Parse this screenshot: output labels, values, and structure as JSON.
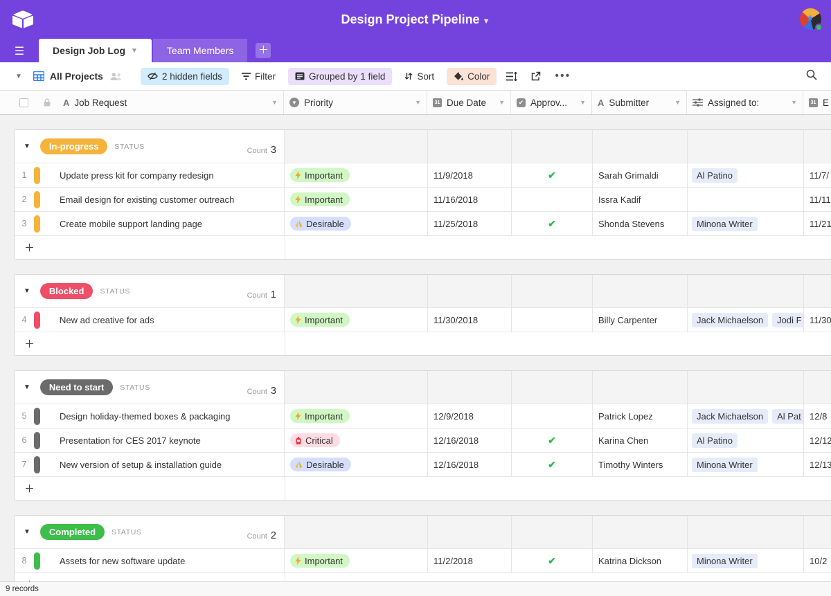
{
  "topbar": {
    "title": "Design Project Pipeline"
  },
  "tabs": {
    "active": "Design Job Log",
    "second": "Team Members"
  },
  "toolbar": {
    "view": "All Projects",
    "hidden_fields": "2 hidden fields",
    "filter": "Filter",
    "grouped": "Grouped by 1 field",
    "sort": "Sort",
    "color": "Color"
  },
  "table": {
    "columns": [
      {
        "id": "job",
        "label": "Job Request",
        "icon": "text-field-icon"
      },
      {
        "id": "priority",
        "label": "Priority",
        "icon": "single-select-icon"
      },
      {
        "id": "due",
        "label": "Due Date",
        "icon": "calendar-icon"
      },
      {
        "id": "approved",
        "label": "Approv...",
        "icon": "checkbox-field-icon"
      },
      {
        "id": "submitter",
        "label": "Submitter",
        "icon": "text-field-icon"
      },
      {
        "id": "assigned",
        "label": "Assigned to:",
        "icon": "sliders-icon"
      },
      {
        "id": "end",
        "label": "E",
        "icon": "calendar-icon"
      }
    ],
    "priority_styles": {
      "Important": {
        "bg": "#d1f7c4",
        "icon": "bolt-icon",
        "icon_color": "#f6a623"
      },
      "Critical": {
        "bg": "#ffdce5",
        "icon": "extinguisher-icon",
        "icon_color": "#e03e3e"
      },
      "Desirable": {
        "bg": "#d5defc",
        "icon": "pray-icon",
        "icon_color": "#f3c13a"
      }
    },
    "groups": [
      {
        "label": "In-progress",
        "status_label": "STATUS",
        "count_label": "Count",
        "count": 3,
        "color": "#f6b33c",
        "rows": [
          {
            "num": 1,
            "job": "Update press kit for company redesign",
            "priority": "Important",
            "due": "11/9/2018",
            "approved": true,
            "submitter": "Sarah Grimaldi",
            "assigned": [
              "Al Patino"
            ],
            "end": "11/7/"
          },
          {
            "num": 2,
            "job": "Email design for existing customer outreach",
            "priority": "Important",
            "due": "11/16/2018",
            "approved": false,
            "submitter": "Issra Kadif",
            "assigned": [],
            "end": "11/11"
          },
          {
            "num": 3,
            "job": "Create mobile support landing page",
            "priority": "Desirable",
            "due": "11/25/2018",
            "approved": true,
            "submitter": "Shonda Stevens",
            "assigned": [
              "Minona Writer"
            ],
            "end": "11/21"
          }
        ]
      },
      {
        "label": "Blocked",
        "status_label": "STATUS",
        "count_label": "Count",
        "count": 1,
        "color": "#ec4f67",
        "rows": [
          {
            "num": 4,
            "job": "New ad creative for ads",
            "priority": "Important",
            "due": "11/30/2018",
            "approved": false,
            "submitter": "Billy Carpenter",
            "assigned": [
              "Jack Michaelson",
              "Jodi F"
            ],
            "end": "11/30"
          }
        ]
      },
      {
        "label": "Need to start",
        "status_label": "STATUS",
        "count_label": "Count",
        "count": 3,
        "color": "#6b6b6b",
        "rows": [
          {
            "num": 5,
            "job": "Design holiday-themed boxes & packaging",
            "priority": "Important",
            "due": "12/9/2018",
            "approved": false,
            "submitter": "Patrick Lopez",
            "assigned": [
              "Jack Michaelson",
              "Al Pat"
            ],
            "end": "12/8"
          },
          {
            "num": 6,
            "job": "Presentation for CES 2017 keynote",
            "priority": "Critical",
            "due": "12/16/2018",
            "approved": true,
            "submitter": "Karina Chen",
            "assigned": [
              "Al Patino"
            ],
            "end": "12/12"
          },
          {
            "num": 7,
            "job": "New version of setup & installation guide",
            "priority": "Desirable",
            "due": "12/16/2018",
            "approved": true,
            "submitter": "Timothy Winters",
            "assigned": [
              "Minona Writer"
            ],
            "end": "12/13"
          }
        ]
      },
      {
        "label": "Completed",
        "status_label": "STATUS",
        "count_label": "Count",
        "count": 2,
        "color": "#3dbd4a",
        "rows": [
          {
            "num": 8,
            "job": "Assets for new software update",
            "priority": "Important",
            "due": "11/2/2018",
            "approved": true,
            "submitter": "Katrina Dickson",
            "assigned": [
              "Minona Writer"
            ],
            "end": "10/2"
          }
        ]
      }
    ]
  },
  "footer": {
    "records": "9 records"
  }
}
